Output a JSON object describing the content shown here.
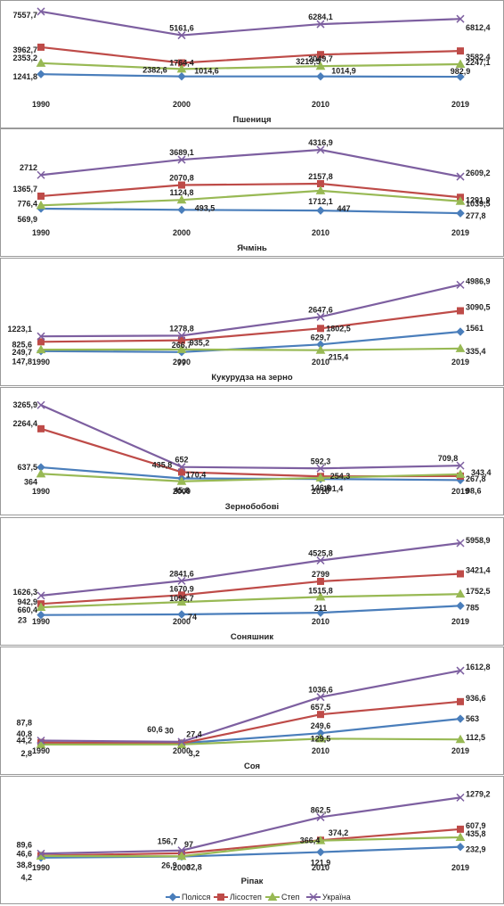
{
  "chart_data": [
    {
      "type": "line",
      "title": "Пшениця",
      "x": [
        "1990",
        "2000",
        "2010",
        "2019"
      ],
      "ylim": [
        0,
        8000
      ],
      "series": [
        {
          "name": "Полісся",
          "color": "#4A7EBB",
          "marker": "diamond",
          "values": [
            1241.8,
            1014.6,
            1014.9,
            982.9
          ]
        },
        {
          "name": "Лісостеп",
          "color": "#BE4B48",
          "marker": "square",
          "values": [
            3962.7,
            2382.6,
            3219.5,
            3582.4
          ]
        },
        {
          "name": "Степ",
          "color": "#98B954",
          "marker": "triangle",
          "values": [
            2353.2,
            1764.4,
            2049.7,
            2247.1
          ]
        },
        {
          "name": "Україна",
          "color": "#7D5FA0",
          "marker": "x",
          "values": [
            7557.7,
            5161.6,
            6284.1,
            6812.4
          ]
        }
      ],
      "labels": [
        [
          "1241,8",
          "1014,6",
          "1014,9",
          "982,9"
        ],
        [
          "3962,7",
          "2382,6",
          "3219,5",
          "3582,4"
        ],
        [
          "2353,2",
          "1764,4",
          "2049,7",
          "2247,1"
        ],
        [
          "7557,7",
          "5161,6",
          "6284,1",
          "6812,4"
        ]
      ]
    },
    {
      "type": "line",
      "title": "Ячмінь",
      "x": [
        "1990",
        "2000",
        "2010",
        "2019"
      ],
      "ylim": [
        0,
        4600
      ],
      "series": [
        {
          "name": "Полісся",
          "color": "#4A7EBB",
          "marker": "diamond",
          "values": [
            569.9,
            493.5,
            447,
            277.8
          ]
        },
        {
          "name": "Лісостеп",
          "color": "#BE4B48",
          "marker": "square",
          "values": [
            1365.7,
            2070.8,
            2157.8,
            1291.9
          ]
        },
        {
          "name": "Степ",
          "color": "#98B954",
          "marker": "triangle",
          "values": [
            776.4,
            1124.8,
            1712.1,
            1039.5
          ]
        },
        {
          "name": "Україна",
          "color": "#7D5FA0",
          "marker": "x",
          "values": [
            2712,
            3689.1,
            4316.9,
            2609.2
          ]
        }
      ],
      "labels": [
        [
          "569,9",
          "493,5",
          "447",
          "277,8"
        ],
        [
          "1365,7",
          "2070,8",
          "2157,8",
          "1291,9"
        ],
        [
          "776,4",
          "1124,8",
          "1712,1",
          "1039,5"
        ],
        [
          "2712",
          "3689,1",
          "4316,9",
          "2609,2"
        ]
      ]
    },
    {
      "type": "line",
      "title": "Кукурудза на зерно",
      "x": [
        "1990",
        "2000",
        "2010",
        "2019"
      ],
      "ylim": [
        0,
        5400
      ],
      "series": [
        {
          "name": "Полісся",
          "color": "#4A7EBB",
          "marker": "diamond",
          "values": [
            147.8,
            77,
            629.7,
            1561
          ]
        },
        {
          "name": "Лісостеп",
          "color": "#BE4B48",
          "marker": "square",
          "values": [
            825.6,
            935.2,
            1802.5,
            3090.5
          ]
        },
        {
          "name": "Степ",
          "color": "#98B954",
          "marker": "triangle",
          "values": [
            249.7,
            266.7,
            215.4,
            335.4
          ]
        },
        {
          "name": "Україна",
          "color": "#7D5FA0",
          "marker": "x",
          "values": [
            1223.1,
            1278.8,
            2647.6,
            4986.9
          ]
        }
      ],
      "labels": [
        [
          "147,8",
          "77",
          "629,7",
          "1561"
        ],
        [
          "825,6",
          "935,2",
          "1802,5",
          "3090,5"
        ],
        [
          "249,7",
          "266,7",
          "215,4",
          "335,4"
        ],
        [
          "1223,1",
          "1278,8",
          "2647,6",
          "4986,9"
        ]
      ]
    },
    {
      "type": "line",
      "title": "Зернобобові",
      "x": [
        "1990",
        "2000",
        "2010",
        "2019"
      ],
      "ylim": [
        0,
        3500
      ],
      "series": [
        {
          "name": "Полісся",
          "color": "#4A7EBB",
          "marker": "diamond",
          "values": [
            637.5,
            170.4,
            146.6,
            98.6
          ]
        },
        {
          "name": "Лісостеп",
          "color": "#BE4B48",
          "marker": "square",
          "values": [
            2264.4,
            435.8,
            254.3,
            267.8
          ]
        },
        {
          "name": "Степ",
          "color": "#98B954",
          "marker": "triangle",
          "values": [
            364,
            45.8,
            191.4,
            343.4
          ]
        },
        {
          "name": "Україна",
          "color": "#7D5FA0",
          "marker": "x",
          "values": [
            3265.9,
            652,
            592.3,
            709.8
          ]
        }
      ],
      "labels": [
        [
          "637,5",
          "170,4",
          "146,6",
          "98,6"
        ],
        [
          "2264,4",
          "435,8",
          "254,3",
          "267,8"
        ],
        [
          "364",
          "45,8",
          "191,4",
          "343,4"
        ],
        [
          "3265,9",
          "652",
          "592,3",
          "709,8"
        ]
      ]
    },
    {
      "type": "line",
      "title": "Соняшник",
      "x": [
        "1990",
        "2000",
        "2010",
        "2019"
      ],
      "ylim": [
        0,
        6400
      ],
      "series": [
        {
          "name": "Полісся",
          "color": "#4A7EBB",
          "marker": "diamond",
          "values": [
            23,
            74,
            211,
            785
          ]
        },
        {
          "name": "Лісостеп",
          "color": "#BE4B48",
          "marker": "square",
          "values": [
            942.9,
            1670.9,
            2799,
            3421.4
          ]
        },
        {
          "name": "Степ",
          "color": "#98B954",
          "marker": "triangle",
          "values": [
            660.4,
            1096.7,
            1515.8,
            1752.5
          ]
        },
        {
          "name": "Україна",
          "color": "#7D5FA0",
          "marker": "x",
          "values": [
            1626.3,
            2841.6,
            4525.8,
            5958.9
          ]
        }
      ],
      "labels": [
        [
          "23",
          "74",
          "211",
          "785"
        ],
        [
          "942,9",
          "1670,9",
          "2799",
          "3421,4"
        ],
        [
          "660,4",
          "1096,7",
          "1515,8",
          "1752,5"
        ],
        [
          "1626,3",
          "2841,6",
          "4525,8",
          "5958,9"
        ]
      ]
    },
    {
      "type": "line",
      "title": "Соя",
      "x": [
        "1990",
        "2000",
        "2010",
        "2019"
      ],
      "ylim": [
        0,
        1750
      ],
      "series": [
        {
          "name": "Полісся",
          "color": "#4A7EBB",
          "marker": "diamond",
          "values": [
            40.8,
            30,
            249.6,
            563
          ]
        },
        {
          "name": "Лісостеп",
          "color": "#BE4B48",
          "marker": "square",
          "values": [
            44.2,
            27.4,
            657.5,
            936.6
          ]
        },
        {
          "name": "Степ",
          "color": "#98B954",
          "marker": "triangle",
          "values": [
            2.8,
            3.2,
            129.5,
            112.5
          ]
        },
        {
          "name": "Україна",
          "color": "#7D5FA0",
          "marker": "x",
          "values": [
            87.8,
            60.6,
            1036.6,
            1612.8
          ]
        }
      ],
      "labels": [
        [
          "40,8",
          "30",
          "249,6",
          "563"
        ],
        [
          "44,2",
          "27,4",
          "657,5",
          "936,6"
        ],
        [
          "2,8",
          "3,2",
          "129,5",
          "112,5"
        ],
        [
          "87,8",
          "60,6",
          "1036,6",
          "1612,8"
        ]
      ]
    },
    {
      "type": "line",
      "title": "Ріпак",
      "x": [
        "1990",
        "2000",
        "2010",
        "2019"
      ],
      "ylim": [
        0,
        1400
      ],
      "series": [
        {
          "name": "Полісся",
          "color": "#4A7EBB",
          "marker": "diamond",
          "values": [
            4.2,
            26.9,
            121.9,
            232.9
          ]
        },
        {
          "name": "Лісостеп",
          "color": "#BE4B48",
          "marker": "square",
          "values": [
            46.6,
            97,
            374.2,
            607.9
          ]
        },
        {
          "name": "Степ",
          "color": "#98B954",
          "marker": "triangle",
          "values": [
            38.8,
            32.8,
            366.4,
            435.8
          ]
        },
        {
          "name": "Україна",
          "color": "#7D5FA0",
          "marker": "x",
          "values": [
            89.6,
            156.7,
            862.5,
            1279.2
          ]
        }
      ],
      "labels": [
        [
          "4,2",
          "26,9",
          "121,9",
          "232,9"
        ],
        [
          "46,6",
          "97",
          "374,2",
          "607,9"
        ],
        [
          "38,8",
          "32,8",
          "366,4",
          "435,8"
        ],
        [
          "89,6",
          "156,7",
          "862,5",
          "1279,2"
        ]
      ]
    }
  ],
  "legend": {
    "placement": "bottom",
    "items": [
      {
        "name": "Полісся",
        "color": "#4A7EBB",
        "marker": "diamond"
      },
      {
        "name": "Лісостеп",
        "color": "#BE4B48",
        "marker": "square"
      },
      {
        "name": "Степ",
        "color": "#98B954",
        "marker": "triangle"
      },
      {
        "name": "Україна",
        "color": "#7D5FA0",
        "marker": "x"
      }
    ]
  }
}
